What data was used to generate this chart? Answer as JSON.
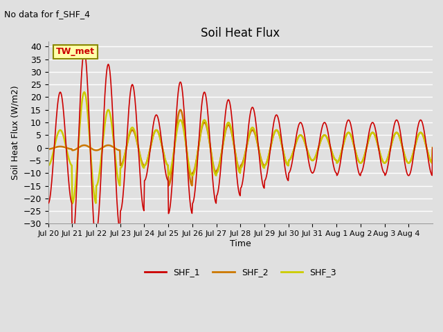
{
  "title": "Soil Heat Flux",
  "subtitle": "No data for f_SHF_4",
  "ylabel": "Soil Heat Flux (W/m2)",
  "xlabel": "Time",
  "ylim": [
    -30,
    42
  ],
  "yticks": [
    -30,
    -25,
    -20,
    -15,
    -10,
    -5,
    0,
    5,
    10,
    15,
    20,
    25,
    30,
    35,
    40
  ],
  "xtick_labels": [
    "Jul 20",
    "Jul 21",
    "Jul 22",
    "Jul 23",
    "Jul 24",
    "Jul 25",
    "Jul 26",
    "Jul 27",
    "Jul 28",
    "Jul 29",
    "Jul 30",
    "Jul 31",
    "Aug 1",
    "Aug 2",
    "Aug 3",
    "Aug 4"
  ],
  "annotation_text": "TW_met",
  "legend_entries": [
    "SHF_1",
    "SHF_2",
    "SHF_3"
  ],
  "line_colors": [
    "#cc0000",
    "#cc7700",
    "#cccc00"
  ],
  "bg_color": "#e0e0e0",
  "plot_bg_color": "#e0e0e0",
  "grid_color": "#ffffff",
  "shf1_amplitudes": [
    22,
    38,
    33,
    25,
    13,
    26,
    22,
    19,
    16,
    13,
    10,
    10,
    11,
    10,
    11,
    11
  ],
  "shf2_amplitudes": [
    0.5,
    1,
    1,
    7,
    7,
    15,
    10,
    9,
    7,
    7,
    5,
    5,
    6,
    6,
    6,
    6
  ],
  "shf3_amplitudes": [
    7,
    22,
    15,
    8,
    7,
    11,
    11,
    10,
    8,
    7,
    5,
    5,
    6,
    6,
    6,
    6
  ]
}
